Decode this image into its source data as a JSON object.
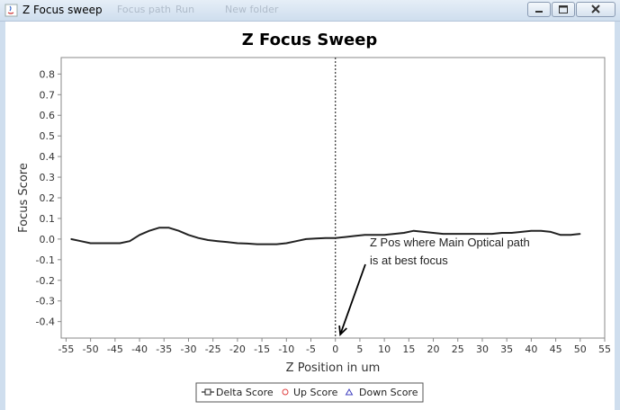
{
  "window": {
    "title": "Z Focus sweep",
    "ghost_menu": [
      "Focus path",
      "Run",
      "New folder"
    ],
    "controls": {
      "minimize_icon": "minimize-icon",
      "maximize_icon": "maximize-icon",
      "close_icon": "close-icon"
    }
  },
  "chart_data": {
    "type": "line",
    "title": "Z Focus Sweep",
    "xlabel": "Z Position in um",
    "ylabel": "Focus Score",
    "xlim": [
      -56,
      55
    ],
    "ylim": [
      -0.48,
      0.88
    ],
    "xticks": [
      -55,
      -50,
      -45,
      -40,
      -35,
      -30,
      -25,
      -20,
      -15,
      -10,
      -5,
      0,
      5,
      10,
      15,
      20,
      25,
      30,
      35,
      40,
      45,
      50,
      55
    ],
    "yticks": [
      -0.4,
      -0.3,
      -0.2,
      -0.1,
      0.0,
      0.1,
      0.2,
      0.3,
      0.4,
      0.5,
      0.6,
      0.7,
      0.8
    ],
    "ytick_labels": [
      "-0.4",
      "-0.3",
      "-0.2",
      "-0.1",
      "0.0",
      "0.1",
      "0.2",
      "0.3",
      "0.4",
      "0.5",
      "0.6",
      "0.7",
      "0.8"
    ],
    "grid": false,
    "legend_position": "bottom",
    "vertical_marker_x": 0,
    "series": [
      {
        "name": "Delta Score",
        "color": "#222222",
        "marker": "square",
        "x": [
          -54,
          -52,
          -50,
          -48,
          -46,
          -44,
          -42,
          -40,
          -38,
          -36,
          -34,
          -32,
          -30,
          -28,
          -26,
          -24,
          -22,
          -20,
          -18,
          -16,
          -14,
          -12,
          -10,
          -8,
          -6,
          -4,
          -2,
          0,
          2,
          4,
          6,
          8,
          10,
          12,
          14,
          16,
          18,
          20,
          22,
          24,
          26,
          28,
          30,
          32,
          34,
          36,
          38,
          40,
          42,
          44,
          46,
          48,
          50
        ],
        "y": [
          0.0,
          -0.01,
          -0.02,
          -0.02,
          -0.02,
          -0.02,
          -0.01,
          0.02,
          0.04,
          0.055,
          0.055,
          0.04,
          0.02,
          0.005,
          -0.005,
          -0.01,
          -0.015,
          -0.02,
          -0.022,
          -0.025,
          -0.025,
          -0.025,
          -0.02,
          -0.01,
          0.0,
          0.003,
          0.005,
          0.005,
          0.01,
          0.015,
          0.02,
          0.02,
          0.02,
          0.025,
          0.03,
          0.04,
          0.035,
          0.03,
          0.025,
          0.025,
          0.025,
          0.025,
          0.025,
          0.025,
          0.03,
          0.03,
          0.035,
          0.04,
          0.04,
          0.035,
          0.02,
          0.02,
          0.025
        ]
      },
      {
        "name": "Up Score",
        "color": "#e04040",
        "marker": "circle",
        "x": [],
        "y": []
      },
      {
        "name": "Down Score",
        "color": "#4040c0",
        "marker": "triangle",
        "x": [],
        "y": []
      }
    ],
    "annotation": {
      "lines": [
        "Z Pos where Main Optical path",
        "is at best focus"
      ],
      "arrow_target": [
        1,
        -0.48
      ]
    }
  }
}
